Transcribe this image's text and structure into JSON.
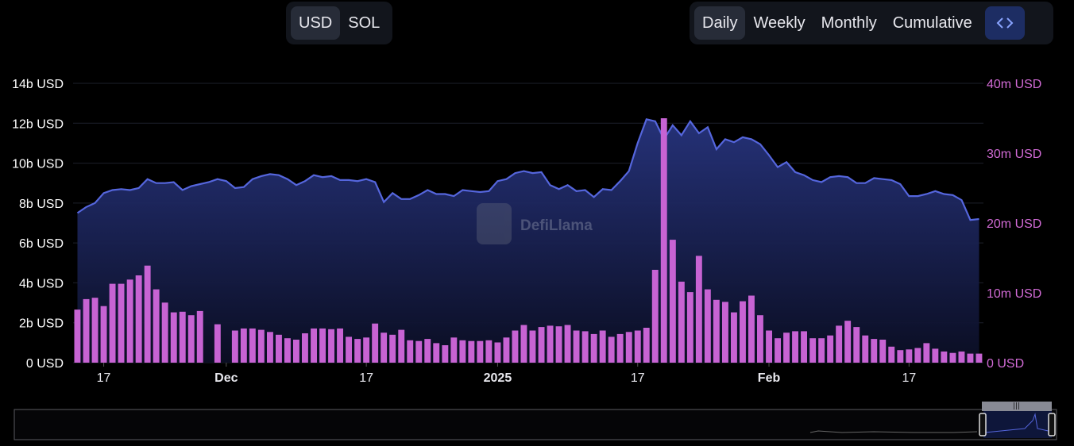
{
  "toolbar": {
    "currency_options": [
      {
        "label": "USD",
        "active": true
      },
      {
        "label": "SOL",
        "active": false
      }
    ],
    "period_options": [
      {
        "label": "Daily",
        "active": true
      },
      {
        "label": "Weekly",
        "active": false
      },
      {
        "label": "Monthly",
        "active": false
      },
      {
        "label": "Cumulative",
        "active": false
      }
    ],
    "embed_icon": "code-brackets-icon"
  },
  "watermark": "DefiLlama",
  "colors": {
    "line": "#5566dd",
    "area_top": "#26327a",
    "bar": "#c763d3",
    "right_axis": "#d26bd6",
    "bar_highlight": "#e070e6"
  },
  "chart_data": {
    "type": "bar",
    "left_axis": {
      "ticks": [
        "0 USD",
        "2b USD",
        "4b USD",
        "6b USD",
        "8b USD",
        "10b USD",
        "12b USD",
        "14b USD"
      ],
      "ylim": [
        0,
        14000000000
      ]
    },
    "right_axis": {
      "ticks": [
        "0 USD",
        "10m USD",
        "20m USD",
        "30m USD",
        "40m USD"
      ],
      "ylim": [
        0,
        40000000
      ]
    },
    "x_ticks": [
      {
        "label": "17",
        "day": 3,
        "bold": false
      },
      {
        "label": "Dec",
        "day": 17,
        "bold": true
      },
      {
        "label": "17",
        "day": 33,
        "bold": false
      },
      {
        "label": "2025",
        "day": 48,
        "bold": true
      },
      {
        "label": "17",
        "day": 64,
        "bold": false
      },
      {
        "label": "Feb",
        "day": 79,
        "bold": true
      },
      {
        "label": "17",
        "day": 95,
        "bold": false
      }
    ],
    "grid": true,
    "series": [
      {
        "type": "area",
        "values": [
          7.5,
          7.8,
          8.0,
          8.5,
          8.65,
          8.7,
          8.65,
          8.75,
          9.2,
          9.0,
          9.0,
          9.05,
          8.65,
          8.85,
          8.95,
          9.05,
          9.2,
          9.1,
          8.75,
          8.8,
          9.2,
          9.35,
          9.45,
          9.4,
          9.2,
          8.9,
          9.1,
          9.4,
          9.3,
          9.35,
          9.15,
          9.15,
          9.1,
          9.2,
          9.05,
          8.05,
          8.5,
          8.2,
          8.2,
          8.4,
          8.65,
          8.45,
          8.45,
          8.35,
          8.65,
          8.6,
          8.55,
          8.6,
          9.1,
          9.2,
          9.5,
          9.6,
          9.5,
          9.55,
          8.9,
          8.7,
          8.9,
          8.6,
          8.65,
          8.3,
          8.7,
          8.65,
          9.1,
          9.6,
          11.0,
          12.2,
          12.1,
          11.2,
          11.9,
          11.4,
          12.1,
          11.5,
          11.8,
          10.7,
          11.2,
          11.05,
          11.3,
          11.2,
          10.95,
          10.4,
          9.8,
          10.05,
          9.55,
          9.4,
          9.15,
          9.05,
          9.3,
          9.35,
          9.3,
          9.0,
          9.0,
          9.25,
          9.2,
          9.15,
          8.95,
          8.35,
          8.35,
          8.45,
          8.6,
          8.45,
          8.4,
          8.15,
          7.15,
          7.2
        ]
      },
      {
        "type": "bar",
        "values": [
          7.6,
          9.1,
          9.3,
          8.1,
          11.3,
          11.3,
          11.9,
          12.5,
          13.9,
          10.5,
          8.6,
          7.2,
          7.3,
          6.8,
          7.4,
          0,
          5.5,
          0,
          4.6,
          4.9,
          4.9,
          4.7,
          4.4,
          4.0,
          3.5,
          3.3,
          4.2,
          4.9,
          4.9,
          4.8,
          4.9,
          3.7,
          3.4,
          3.6,
          5.6,
          4.3,
          4.0,
          4.7,
          3.2,
          3.1,
          3.4,
          2.8,
          2.5,
          3.6,
          3.2,
          3.1,
          3.1,
          3.2,
          2.9,
          3.6,
          4.6,
          5.4,
          4.6,
          5.1,
          5.3,
          5.2,
          5.4,
          4.6,
          4.5,
          4.1,
          4.6,
          3.7,
          4.1,
          4.4,
          4.6,
          5.0,
          13.3,
          35.0,
          17.6,
          11.6,
          10.1,
          15.3,
          10.5,
          9.0,
          8.7,
          7.2,
          8.8,
          9.6,
          6.8,
          4.6,
          3.5,
          4.3,
          4.5,
          4.5,
          3.5,
          3.5,
          3.9,
          5.3,
          6.0,
          5.1,
          3.9,
          3.4,
          3.3,
          2.3,
          1.8,
          1.9,
          2.1,
          2.8,
          2.0,
          1.6,
          1.4,
          1.6,
          1.3,
          1.3
        ]
      }
    ]
  }
}
